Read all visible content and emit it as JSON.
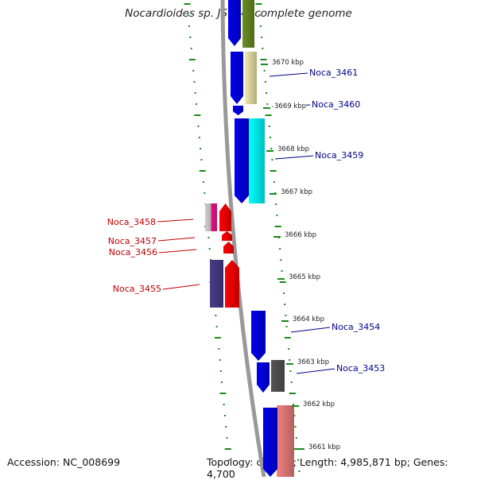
{
  "title": "Nocardioides sp. JS614, complete genome",
  "footer": {
    "accession": "Accession: NC_008699",
    "summary": "Topology: circular; Length: 4,985,871 bp; Genes: 4,700"
  },
  "colors": {
    "forward_label": "#00008b",
    "reverse_label": "#c00000",
    "tick": "#1a8a1a",
    "backbone": "#888888"
  },
  "kbp_ticks": [
    "3670 kbp",
    "3669 kbp",
    "3668 kbp",
    "3667 kbp",
    "3666 kbp",
    "3665 kbp",
    "3664 kbp",
    "3663 kbp",
    "3662 kbp",
    "3661 kbp"
  ],
  "genes": [
    {
      "name": "",
      "strand": "forward",
      "color": "#0000ee",
      "cog": "#6b8e23"
    },
    {
      "name": "Noca_3461",
      "strand": "forward",
      "color": "#0000ee",
      "cog": "#eee8aa"
    },
    {
      "name": "Noca_3460",
      "strand": "forward",
      "color": "#0000ee",
      "cog": ""
    },
    {
      "name": "Noca_3459",
      "strand": "forward",
      "color": "#0000ee",
      "cog": "#00ffff"
    },
    {
      "name": "Noca_3458",
      "strand": "reverse",
      "color": "#ff0000",
      "cog": "#ff1493"
    },
    {
      "name": "Noca_3457",
      "strand": "reverse",
      "color": "#ff0000",
      "cog": ""
    },
    {
      "name": "Noca_3456",
      "strand": "reverse",
      "color": "#ff0000",
      "cog": ""
    },
    {
      "name": "Noca_3455",
      "strand": "reverse",
      "color": "#ff0000",
      "cog": "#483d8b"
    },
    {
      "name": "Noca_3454",
      "strand": "forward",
      "color": "#0000ee",
      "cog": ""
    },
    {
      "name": "Noca_3453",
      "strand": "forward",
      "color": "#0000ee",
      "cog": "#555555"
    },
    {
      "name": "",
      "strand": "forward",
      "color": "#0000ee",
      "cog": "#f08080"
    }
  ]
}
